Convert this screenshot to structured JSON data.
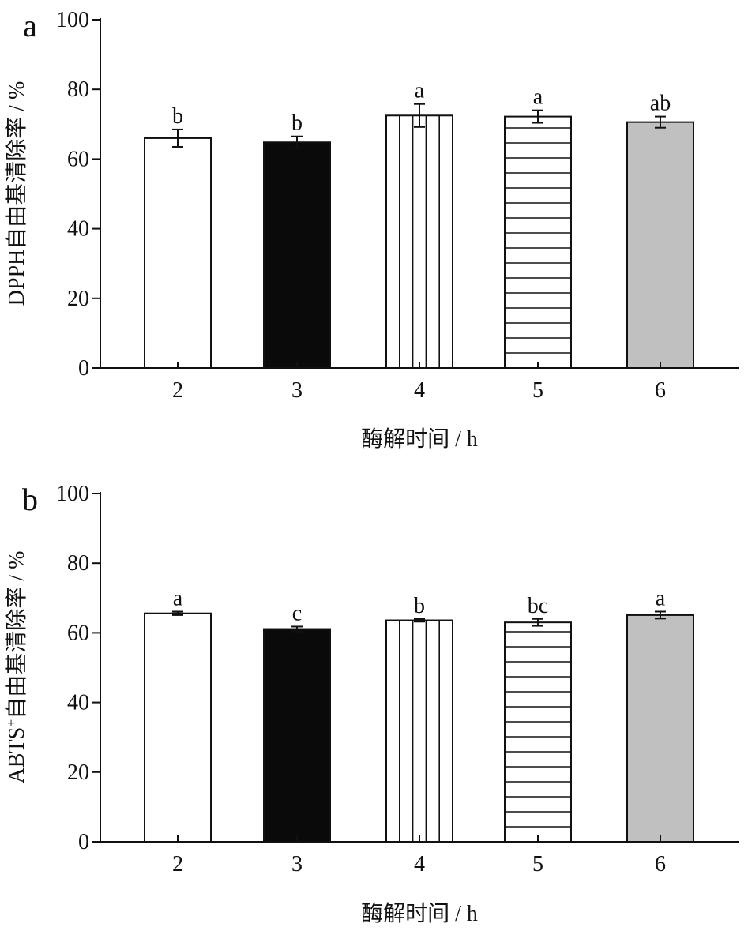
{
  "chart_data": [
    {
      "type": "bar",
      "panel_label": "a",
      "categories": [
        "2",
        "3",
        "4",
        "5",
        "6"
      ],
      "values": [
        66.0,
        64.8,
        72.5,
        72.2,
        70.6
      ],
      "errors": [
        2.5,
        1.7,
        3.3,
        1.8,
        1.6
      ],
      "letters": [
        "b",
        "b",
        "a",
        "a",
        "ab"
      ],
      "patterns": [
        "white",
        "black",
        "vertical-lines",
        "horizontal-lines",
        "gray"
      ],
      "xlabel": "酶解时间 / h",
      "ylabel": "DPPH自由基清除率 / %",
      "ylabel_sup": "",
      "ylabel_rest": "",
      "ylim": [
        0,
        100
      ],
      "yticks": [
        "0",
        "20",
        "40",
        "60",
        "80",
        "100"
      ],
      "grid": false
    },
    {
      "type": "bar",
      "panel_label": "b",
      "categories": [
        "2",
        "3",
        "4",
        "5",
        "6"
      ],
      "values": [
        65.6,
        61.1,
        63.6,
        63.0,
        65.1
      ],
      "errors": [
        0.5,
        0.7,
        0.4,
        1.0,
        1.0
      ],
      "letters": [
        "a",
        "c",
        "b",
        "bc",
        "a"
      ],
      "patterns": [
        "white",
        "black",
        "vertical-lines",
        "horizontal-lines",
        "gray"
      ],
      "xlabel": "酶解时间 / h",
      "ylabel": "ABTS",
      "ylabel_sup": "+",
      "ylabel_rest": "自由基清除率 / %",
      "ylim": [
        0,
        100
      ],
      "yticks": [
        "0",
        "20",
        "40",
        "60",
        "80",
        "100"
      ],
      "grid": false
    }
  ],
  "colors": {
    "axis": "#111111",
    "black_bar": "#0a0a0a",
    "gray_bar": "#c0c0c0",
    "white_bar": "#ffffff"
  }
}
